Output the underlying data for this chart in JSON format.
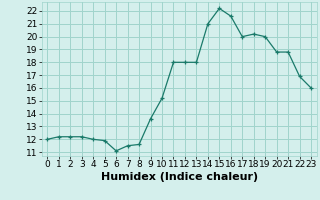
{
  "x": [
    0,
    1,
    2,
    3,
    4,
    5,
    6,
    7,
    8,
    9,
    10,
    11,
    12,
    13,
    14,
    15,
    16,
    17,
    18,
    19,
    20,
    21,
    22,
    23
  ],
  "y": [
    12,
    12.2,
    12.2,
    12.2,
    12,
    11.9,
    11.1,
    11.5,
    11.6,
    13.6,
    15.2,
    18,
    18,
    18,
    21,
    22.2,
    21.6,
    20,
    20.2,
    20,
    18.8,
    18.8,
    16.9,
    16
  ],
  "line_color": "#1a7a6a",
  "marker": "+",
  "marker_size": 3,
  "bg_color": "#d4efec",
  "grid_color": "#a0d4cc",
  "xlabel": "Humidex (Indice chaleur)",
  "xlim": [
    -0.5,
    23.5
  ],
  "ylim": [
    10.7,
    22.7
  ],
  "yticks": [
    11,
    12,
    13,
    14,
    15,
    16,
    17,
    18,
    19,
    20,
    21,
    22
  ],
  "xticks": [
    0,
    1,
    2,
    3,
    4,
    5,
    6,
    7,
    8,
    9,
    10,
    11,
    12,
    13,
    14,
    15,
    16,
    17,
    18,
    19,
    20,
    21,
    22,
    23
  ],
  "tick_fontsize": 6.5,
  "xlabel_fontsize": 8
}
